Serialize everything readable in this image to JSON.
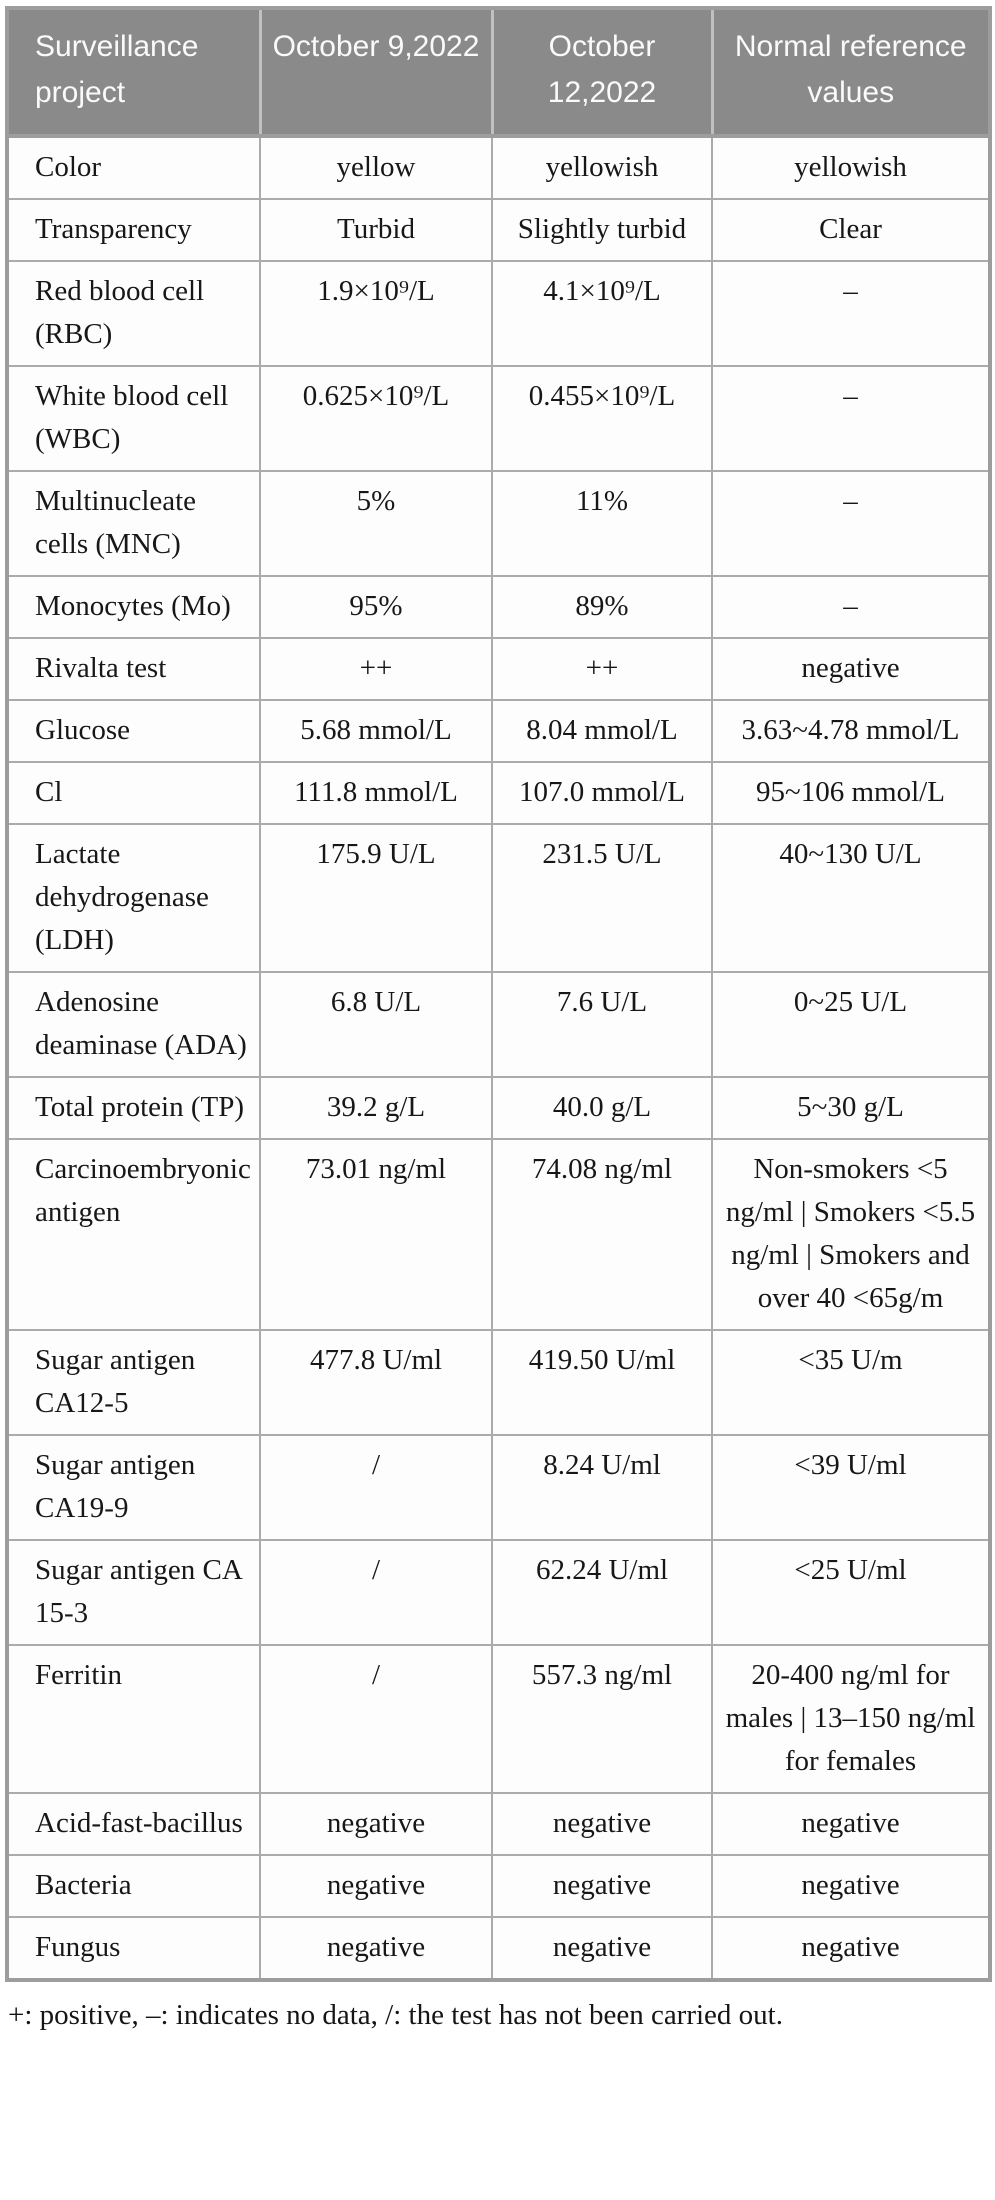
{
  "colors": {
    "header_bg": "#8a8a8a",
    "header_text": "#ffffff",
    "grid_line": "#ababab",
    "outer_border": "#9d9d9d",
    "body_text": "#171717"
  },
  "table": {
    "header": [
      "Surveillance project",
      "October 9,2022",
      "October 12,2022",
      "Normal reference values"
    ],
    "rows": [
      {
        "project": "Color",
        "oct9": "yellow",
        "oct12": "yellowish",
        "ref": "yellowish"
      },
      {
        "project": "Transparency",
        "oct9": "Turbid",
        "oct12": "Slightly turbid",
        "ref": "Clear"
      },
      {
        "project": "Red blood cell (RBC)",
        "oct9": "1.9×10⁹/L",
        "oct12": "4.1×10⁹/L",
        "ref": "–"
      },
      {
        "project": "White blood cell (WBC)",
        "oct9": "0.625×10⁹/L",
        "oct12": "0.455×10⁹/L",
        "ref": "–"
      },
      {
        "project": "Multinucleate cells (MNC)",
        "oct9": "5%",
        "oct12": "11%",
        "ref": "–"
      },
      {
        "project": "Monocytes (Mo)",
        "oct9": "95%",
        "oct12": "89%",
        "ref": "–"
      },
      {
        "project": "Rivalta test",
        "oct9": "++",
        "oct12": "++",
        "ref": "negative"
      },
      {
        "project": "Glucose",
        "oct9": "5.68 mmol/L",
        "oct12": "8.04 mmol/L",
        "ref": "3.63~4.78 mmol/L"
      },
      {
        "project": "Cl",
        "oct9": "111.8 mmol/L",
        "oct12": "107.0 mmol/L",
        "ref": "95~106 mmol/L"
      },
      {
        "project": "Lactate dehydrogenase (LDH)",
        "oct9": "175.9 U/L",
        "oct12": "231.5 U/L",
        "ref": "40~130 U/L"
      },
      {
        "project": "Adenosine deaminase (ADA)",
        "oct9": "6.8 U/L",
        "oct12": "7.6 U/L",
        "ref": "0~25 U/L"
      },
      {
        "project": "Total protein (TP)",
        "oct9": "39.2 g/L",
        "oct12": "40.0 g/L",
        "ref": "5~30 g/L"
      },
      {
        "project": "Carcinoembryonic antigen",
        "oct9": "73.01 ng/ml",
        "oct12": "74.08 ng/ml",
        "ref": "Non-smokers <5 ng/ml | Smokers <5.5 ng/ml | Smokers and over 40 <65g/m"
      },
      {
        "project": "Sugar antigen CA12-5",
        "oct9": "477.8 U/ml",
        "oct12": "419.50 U/ml",
        "ref": "<35 U/m"
      },
      {
        "project": "Sugar antigen CA19-9",
        "oct9": "/",
        "oct12": "8.24 U/ml",
        "ref": "<39 U/ml"
      },
      {
        "project": "Sugar antigen CA 15-3",
        "oct9": "/",
        "oct12": "62.24 U/ml",
        "ref": "<25 U/ml"
      },
      {
        "project": "Ferritin",
        "oct9": "/",
        "oct12": "557.3 ng/ml",
        "ref": "20-400 ng/ml for males | 13–150 ng/ml for females"
      },
      {
        "project": "Acid-fast-bacillus",
        "oct9": "negative",
        "oct12": "negative",
        "ref": "negative"
      },
      {
        "project": "Bacteria",
        "oct9": "negative",
        "oct12": "negative",
        "ref": "negative"
      },
      {
        "project": "Fungus",
        "oct9": "negative",
        "oct12": "negative",
        "ref": "negative"
      }
    ],
    "footnote": "+: positive, –: indicates no data, /: the test has not been carried out."
  }
}
